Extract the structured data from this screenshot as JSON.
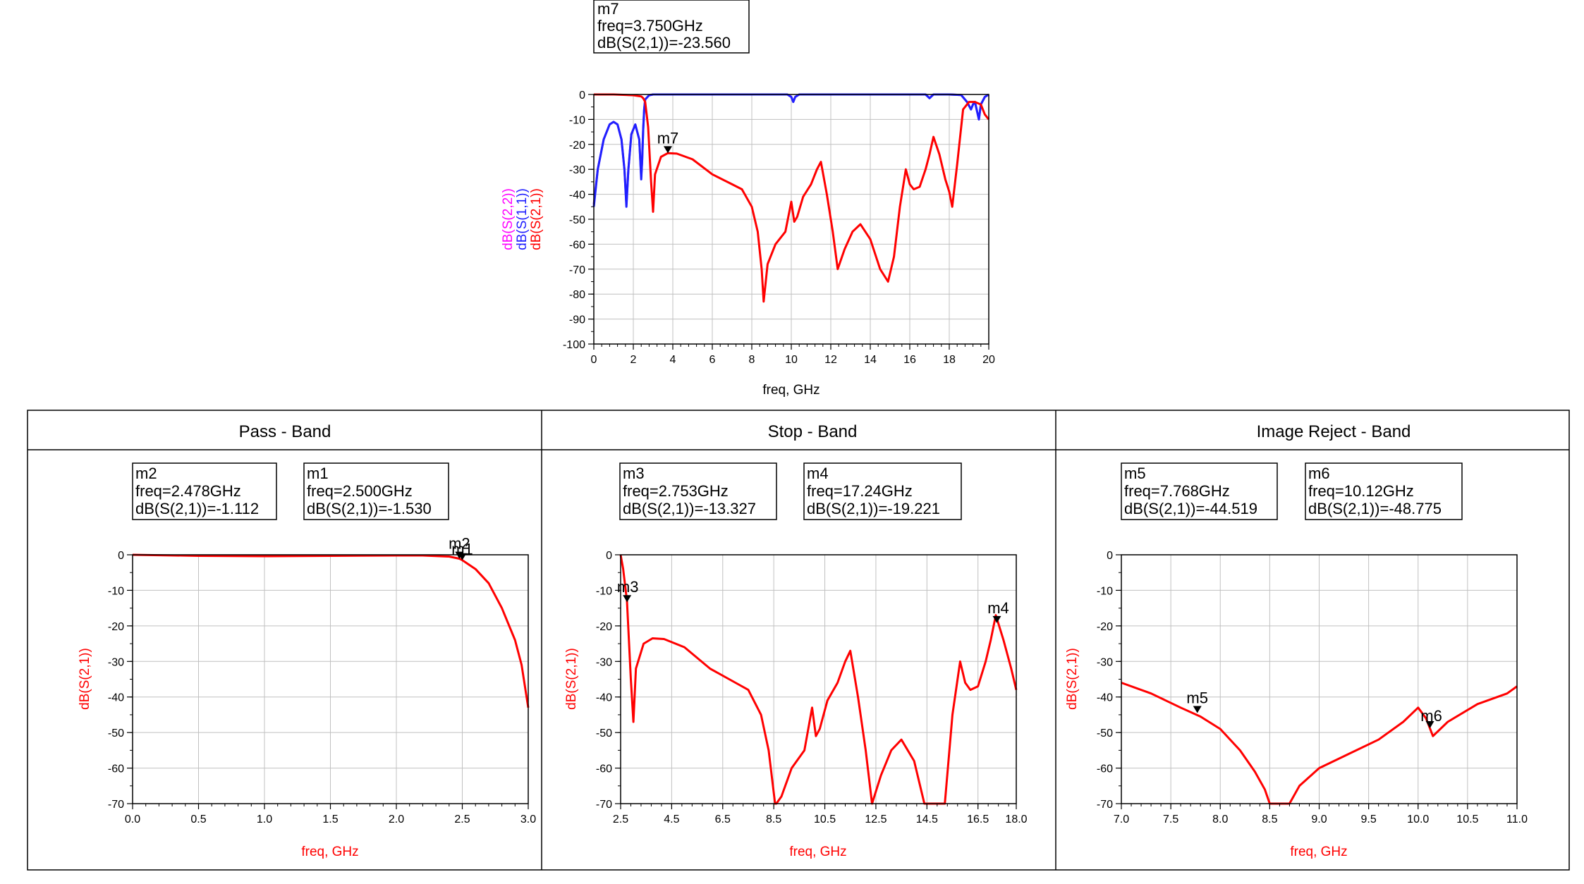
{
  "colors": {
    "s21": "#ff0000",
    "s11": "#2020ff",
    "s22": "#8a2be2",
    "grid": "#c0c0c0",
    "axis_label": "#ff0000"
  },
  "top_marker": {
    "name": "m7",
    "line1": "freq=3.750GHz",
    "line2": "dB(S(2,1))=-23.560"
  },
  "panels": [
    {
      "title": "Pass - Band"
    },
    {
      "title": "Stop - Band"
    },
    {
      "title": "Image Reject - Band"
    }
  ],
  "chart_data": [
    {
      "type": "line",
      "xlabel": "freq, GHz",
      "ylabels": [
        "dB(S(2,2))",
        "dB(S(1,1))",
        "dB(S(2,1))"
      ],
      "xlim": [
        0,
        20
      ],
      "ylim": [
        -100,
        0
      ],
      "xticks": [
        "0",
        "2",
        "4",
        "6",
        "8",
        "10",
        "12",
        "14",
        "16",
        "18",
        "20"
      ],
      "yticks": [
        "0",
        "-10",
        "-20",
        "-30",
        "-40",
        "-50",
        "-60",
        "-70",
        "-80",
        "-90",
        "-100"
      ],
      "grid": true,
      "markers": [
        {
          "name": "m7",
          "x": 3.75,
          "y": -23.56
        }
      ],
      "series": [
        {
          "name": "dB(S(2,1))",
          "color": "#ff0000",
          "x": [
            0,
            1,
            2,
            2.4,
            2.5,
            2.6,
            2.75,
            2.9,
            3.0,
            3.1,
            3.4,
            3.75,
            4.2,
            5,
            6,
            7,
            7.5,
            8,
            8.3,
            8.5,
            8.6,
            8.8,
            9.2,
            9.7,
            10,
            10.15,
            10.3,
            10.6,
            11,
            11.3,
            11.5,
            11.8,
            12.1,
            12.35,
            12.7,
            13.1,
            13.5,
            14,
            14.5,
            14.9,
            15.2,
            15.5,
            15.8,
            16,
            16.2,
            16.5,
            16.8,
            17,
            17.2,
            17.5,
            17.8,
            18,
            18.15,
            18.4,
            18.7,
            19,
            19.3,
            19.6,
            19.8,
            20
          ],
          "y": [
            0,
            0,
            -0.3,
            -0.8,
            -1.5,
            -3,
            -13,
            -35,
            -47,
            -32,
            -25,
            -23.5,
            -23.7,
            -26,
            -32,
            -36,
            -38,
            -45,
            -55,
            -70,
            -83,
            -68,
            -60,
            -55,
            -43,
            -51,
            -49,
            -41,
            -36,
            -30,
            -27,
            -40,
            -55,
            -70,
            -62,
            -55,
            -52,
            -58,
            -70,
            -75,
            -65,
            -45,
            -30,
            -36,
            -38,
            -37,
            -30,
            -24,
            -17,
            -24,
            -34,
            -39,
            -45,
            -28,
            -6,
            -3,
            -3,
            -4,
            -8,
            -10
          ]
        },
        {
          "name": "dB(S(1,1))",
          "color": "#2020ff",
          "x": [
            0,
            0.2,
            0.5,
            0.8,
            1,
            1.2,
            1.4,
            1.55,
            1.65,
            1.75,
            1.9,
            2.1,
            2.3,
            2.4,
            2.45,
            2.5,
            2.55,
            2.6,
            2.8,
            3,
            5,
            9.8,
            10,
            10.1,
            10.2,
            10.4,
            12,
            16.8,
            17,
            17.2,
            18,
            18.6,
            18.9,
            19.1,
            19.2,
            19.3,
            19.5,
            19.6,
            19.8,
            20
          ],
          "y": [
            -45,
            -30,
            -18,
            -12,
            -11,
            -12,
            -18,
            -30,
            -45,
            -30,
            -16,
            -12,
            -18,
            -34,
            -26,
            -14,
            -6,
            -2,
            -0.3,
            0,
            0,
            0,
            -1,
            -3,
            -1,
            0,
            0,
            0,
            -1.5,
            0,
            0,
            -0.2,
            -3,
            -6,
            -4,
            -3,
            -10,
            -4,
            -1,
            0
          ]
        },
        {
          "name": "dB(S(2,2))",
          "color": "#8a2be2",
          "x": [
            0,
            0.2,
            0.5,
            0.8,
            1,
            1.2,
            1.4,
            1.55,
            1.65,
            1.75,
            1.9,
            2.1,
            2.3,
            2.4,
            2.45,
            2.5,
            2.55,
            2.6,
            2.8,
            3,
            5,
            9.8,
            10,
            10.1,
            10.2,
            10.4,
            12,
            16.8,
            17,
            17.2,
            18,
            18.6,
            18.9,
            19.1,
            19.2,
            19.3,
            19.5,
            19.6,
            19.8,
            20
          ],
          "y": [
            -44,
            -30,
            -18,
            -12,
            -11,
            -12,
            -18,
            -30,
            -44,
            -30,
            -16,
            -12,
            -18,
            -33,
            -26,
            -14,
            -6,
            -2,
            -0.3,
            0,
            0,
            0,
            -1,
            -3,
            -1,
            0,
            0,
            0,
            -1.5,
            0,
            0,
            -0.2,
            -3,
            -6,
            -4,
            -3,
            -10,
            -4,
            -1,
            0
          ]
        }
      ]
    },
    {
      "type": "line",
      "xlabel": "freq, GHz",
      "ylabel": "dB(S(2,1))",
      "xlim": [
        0,
        3
      ],
      "ylim": [
        -70,
        0
      ],
      "xticks": [
        "0.0",
        "0.5",
        "1.0",
        "1.5",
        "2.0",
        "2.5",
        "3.0"
      ],
      "yticks": [
        "0",
        "-10",
        "-20",
        "-30",
        "-40",
        "-50",
        "-60",
        "-70"
      ],
      "grid": true,
      "markers": [
        {
          "name": "m2",
          "x": 2.478,
          "y": -1.112
        },
        {
          "name": "m1",
          "x": 2.5,
          "y": -1.53
        }
      ],
      "marker_labels": [
        {
          "name": "m2",
          "line1": "freq=2.478GHz",
          "line2": "dB(S(2,1))=-1.112"
        },
        {
          "name": "m1",
          "line1": "freq=2.500GHz",
          "line2": "dB(S(2,1))=-1.530"
        }
      ],
      "series": [
        {
          "name": "dB(S(2,1))",
          "color": "#ff0000",
          "x": [
            0,
            0.5,
            1,
            1.5,
            2,
            2.2,
            2.4,
            2.478,
            2.5,
            2.6,
            2.7,
            2.8,
            2.9,
            2.95,
            3.0
          ],
          "y": [
            0,
            -0.3,
            -0.4,
            -0.3,
            -0.2,
            -0.2,
            -0.5,
            -1.1,
            -1.5,
            -4,
            -8,
            -15,
            -24,
            -31,
            -43
          ]
        }
      ]
    },
    {
      "type": "line",
      "xlabel": "freq, GHz",
      "ylabel": "dB(S(2,1))",
      "xlim": [
        2.5,
        18
      ],
      "ylim": [
        -70,
        0
      ],
      "xticks": [
        "2.5",
        "4.5",
        "6.5",
        "8.5",
        "10.5",
        "12.5",
        "14.5",
        "16.5",
        "18.0"
      ],
      "yticks": [
        "0",
        "-10",
        "-20",
        "-30",
        "-40",
        "-50",
        "-60",
        "-70"
      ],
      "grid": true,
      "markers": [
        {
          "name": "m3",
          "x": 2.753,
          "y": -13.327
        },
        {
          "name": "m4",
          "x": 17.24,
          "y": -19.221
        }
      ],
      "marker_labels": [
        {
          "name": "m3",
          "line1": "freq=2.753GHz",
          "line2": "dB(S(2,1))=-13.327"
        },
        {
          "name": "m4",
          "line1": "freq=17.24GHz",
          "line2": "dB(S(2,1))=-19.221"
        }
      ],
      "series": [
        {
          "name": "dB(S(2,1))",
          "color": "#ff0000",
          "x": [
            2.5,
            2.6,
            2.75,
            2.9,
            3.0,
            3.1,
            3.4,
            3.75,
            4.2,
            5,
            6,
            7,
            7.5,
            8,
            8.3,
            8.55,
            8.6,
            8.8,
            9.2,
            9.7,
            10,
            10.15,
            10.3,
            10.6,
            11,
            11.3,
            11.5,
            11.8,
            12.1,
            12.35,
            12.7,
            13.1,
            13.5,
            14,
            14.4,
            14.55,
            15.2,
            15.5,
            15.8,
            16,
            16.2,
            16.5,
            16.8,
            17,
            17.2,
            17.5,
            17.8,
            18
          ],
          "y": [
            0,
            -4,
            -13,
            -35,
            -47,
            -32,
            -25,
            -23.5,
            -23.7,
            -26,
            -32,
            -36,
            -38,
            -45,
            -55,
            -70,
            -70,
            -68,
            -60,
            -55,
            -43,
            -51,
            -49,
            -41,
            -36,
            -30,
            -27,
            -40,
            -55,
            -70,
            -62,
            -55,
            -52,
            -58,
            -70,
            -70,
            -70,
            -45,
            -30,
            -36,
            -38,
            -37,
            -30,
            -24,
            -17,
            -24,
            -32,
            -38
          ]
        }
      ]
    },
    {
      "type": "line",
      "xlabel": "freq, GHz",
      "ylabel": "dB(S(2,1))",
      "xlim": [
        7,
        11
      ],
      "ylim": [
        -70,
        0
      ],
      "xticks": [
        "7.0",
        "7.5",
        "8.0",
        "8.5",
        "9.0",
        "9.5",
        "10.0",
        "10.5",
        "11.0"
      ],
      "yticks": [
        "0",
        "-10",
        "-20",
        "-30",
        "-40",
        "-50",
        "-60",
        "-70"
      ],
      "grid": true,
      "markers": [
        {
          "name": "m5",
          "x": 7.768,
          "y": -44.519
        },
        {
          "name": "m6",
          "x": 10.12,
          "y": -48.775
        }
      ],
      "marker_labels": [
        {
          "name": "m5",
          "line1": "freq=7.768GHz",
          "line2": "dB(S(2,1))=-44.519"
        },
        {
          "name": "m6",
          "line1": "freq=10.12GHz",
          "line2": "dB(S(2,1))=-48.775"
        }
      ],
      "series": [
        {
          "name": "dB(S(2,1))",
          "color": "#ff0000",
          "x": [
            7,
            7.3,
            7.6,
            7.8,
            8,
            8.2,
            8.35,
            8.45,
            8.5,
            8.55,
            8.65,
            8.7,
            8.8,
            9,
            9.3,
            9.6,
            9.85,
            10,
            10.08,
            10.15,
            10.3,
            10.6,
            10.9,
            11
          ],
          "y": [
            -36,
            -39,
            -43,
            -45.5,
            -49,
            -55,
            -61,
            -66,
            -70,
            -70,
            -70,
            -70,
            -65,
            -60,
            -56,
            -52,
            -47,
            -43,
            -46,
            -51,
            -47,
            -42,
            -39,
            -37
          ]
        }
      ]
    }
  ]
}
